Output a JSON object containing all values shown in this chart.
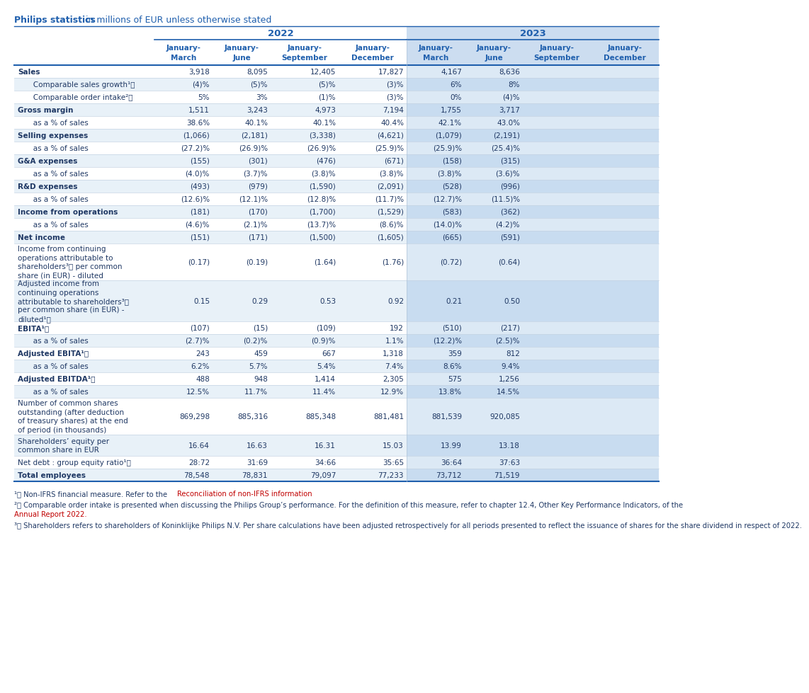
{
  "title_bold": "Philips statistics",
  "title_normal": " in millions of EUR unless otherwise stated",
  "col_headers": [
    "January-\nMarch",
    "January-\nJune",
    "January-\nSeptember",
    "January-\nDecember",
    "January-\nMarch",
    "January-\nJune",
    "January-\nSeptember",
    "January-\nDecember"
  ],
  "rows": [
    {
      "label": "Sales",
      "indent": false,
      "bold": true,
      "values": [
        "3,918",
        "8,095",
        "12,405",
        "17,827",
        "4,167",
        "8,636",
        "",
        ""
      ]
    },
    {
      "label": "   Comparable sales growth¹⧠",
      "indent": true,
      "bold": false,
      "values": [
        "(4)%",
        "(5)%",
        "(5)%",
        "(3)%",
        "6%",
        "8%",
        "",
        ""
      ]
    },
    {
      "label": "   Comparable order intake²⧠",
      "indent": true,
      "bold": false,
      "values": [
        "5%",
        "3%",
        "(1)%",
        "(3)%",
        "0%",
        "(4)%",
        "",
        ""
      ]
    },
    {
      "label": "Gross margin",
      "indent": false,
      "bold": true,
      "values": [
        "1,511",
        "3,243",
        "4,973",
        "7,194",
        "1,755",
        "3,717",
        "",
        ""
      ]
    },
    {
      "label": "   as a % of sales",
      "indent": true,
      "bold": false,
      "values": [
        "38.6%",
        "40.1%",
        "40.1%",
        "40.4%",
        "42.1%",
        "43.0%",
        "",
        ""
      ]
    },
    {
      "label": "Selling expenses",
      "indent": false,
      "bold": true,
      "values": [
        "(1,066)",
        "(2,181)",
        "(3,338)",
        "(4,621)",
        "(1,079)",
        "(2,191)",
        "",
        ""
      ]
    },
    {
      "label": "   as a % of sales",
      "indent": true,
      "bold": false,
      "values": [
        "(27.2)%",
        "(26.9)%",
        "(26.9)%",
        "(25.9)%",
        "(25.9)%",
        "(25.4)%",
        "",
        ""
      ]
    },
    {
      "label": "G&A expenses",
      "indent": false,
      "bold": true,
      "values": [
        "(155)",
        "(301)",
        "(476)",
        "(671)",
        "(158)",
        "(315)",
        "",
        ""
      ]
    },
    {
      "label": "   as a % of sales",
      "indent": true,
      "bold": false,
      "values": [
        "(4.0)%",
        "(3.7)%",
        "(3.8)%",
        "(3.8)%",
        "(3.8)%",
        "(3.6)%",
        "",
        ""
      ]
    },
    {
      "label": "R&D expenses",
      "indent": false,
      "bold": true,
      "values": [
        "(493)",
        "(979)",
        "(1,590)",
        "(2,091)",
        "(528)",
        "(996)",
        "",
        ""
      ]
    },
    {
      "label": "   as a % of sales",
      "indent": true,
      "bold": false,
      "values": [
        "(12.6)%",
        "(12.1)%",
        "(12.8)%",
        "(11.7)%",
        "(12.7)%",
        "(11.5)%",
        "",
        ""
      ]
    },
    {
      "label": "Income from operations",
      "indent": false,
      "bold": true,
      "values": [
        "(181)",
        "(170)",
        "(1,700)",
        "(1,529)",
        "(583)",
        "(362)",
        "",
        ""
      ]
    },
    {
      "label": "   as a % of sales",
      "indent": true,
      "bold": false,
      "values": [
        "(4.6)%",
        "(2.1)%",
        "(13.7)%",
        "(8.6)%",
        "(14.0)%",
        "(4.2)%",
        "",
        ""
      ]
    },
    {
      "label": "Net income",
      "indent": false,
      "bold": true,
      "values": [
        "(151)",
        "(171)",
        "(1,500)",
        "(1,605)",
        "(665)",
        "(591)",
        "",
        ""
      ]
    },
    {
      "label": "Income from continuing\noperations attributable to\nshareholders³⧠ per common\nshare (in EUR) - diluted",
      "indent": false,
      "bold": false,
      "multiline": 4,
      "values": [
        "(0.17)",
        "(0.19)",
        "(1.64)",
        "(1.76)",
        "(0.72)",
        "(0.64)",
        "",
        ""
      ]
    },
    {
      "label": "Adjusted income from\ncontinuing operations\nattributable to shareholders³⧠\nper common share (in EUR) -\ndiluted¹⧠",
      "indent": false,
      "bold": false,
      "multiline": 5,
      "values": [
        "0.15",
        "0.29",
        "0.53",
        "0.92",
        "0.21",
        "0.50",
        "",
        ""
      ]
    },
    {
      "label": "EBITA¹⧠",
      "indent": false,
      "bold": true,
      "values": [
        "(107)",
        "(15)",
        "(109)",
        "192",
        "(510)",
        "(217)",
        "",
        ""
      ]
    },
    {
      "label": "   as a % of sales",
      "indent": true,
      "bold": false,
      "values": [
        "(2.7)%",
        "(0.2)%",
        "(0.9)%",
        "1.1%",
        "(12.2)%",
        "(2.5)%",
        "",
        ""
      ]
    },
    {
      "label": "Adjusted EBITA¹⧠",
      "indent": false,
      "bold": true,
      "values": [
        "243",
        "459",
        "667",
        "1,318",
        "359",
        "812",
        "",
        ""
      ]
    },
    {
      "label": "   as a % of sales",
      "indent": true,
      "bold": false,
      "values": [
        "6.2%",
        "5.7%",
        "5.4%",
        "7.4%",
        "8.6%",
        "9.4%",
        "",
        ""
      ]
    },
    {
      "label": "Adjusted EBITDA¹⧠",
      "indent": false,
      "bold": true,
      "values": [
        "488",
        "948",
        "1,414",
        "2,305",
        "575",
        "1,256",
        "",
        ""
      ]
    },
    {
      "label": "   as a % of sales",
      "indent": true,
      "bold": false,
      "values": [
        "12.5%",
        "11.7%",
        "11.4%",
        "12.9%",
        "13.8%",
        "14.5%",
        "",
        ""
      ]
    },
    {
      "label": "Number of common shares\noutstanding (after deduction\nof treasury shares) at the end\nof period (in thousands)",
      "indent": false,
      "bold": false,
      "multiline": 4,
      "values": [
        "869,298",
        "885,316",
        "885,348",
        "881,481",
        "881,539",
        "920,085",
        "",
        ""
      ]
    },
    {
      "label": "Shareholders’ equity per\ncommon share in EUR",
      "indent": false,
      "bold": false,
      "multiline": 2,
      "values": [
        "16.64",
        "16.63",
        "16.31",
        "15.03",
        "13.99",
        "13.18",
        "",
        ""
      ]
    },
    {
      "label": "Net debt : group equity ratio¹⧠",
      "indent": false,
      "bold": false,
      "values": [
        "28:72",
        "31:69",
        "34:66",
        "35:65",
        "36:64",
        "37:63",
        "",
        ""
      ]
    },
    {
      "label": "Total employees",
      "indent": false,
      "bold": true,
      "values": [
        "78,548",
        "78,831",
        "79,097",
        "77,233",
        "73,712",
        "71,519",
        "",
        ""
      ]
    }
  ],
  "colors": {
    "header_blue": "#1F5FAD",
    "title_blue": "#1F5FAD",
    "light_blue_bg": "#CCDDF0",
    "white_bg": "#FFFFFF",
    "text_dark": "#1F3864",
    "link_color": "#C00000",
    "border_blue": "#1F5FAD",
    "row_even_bg": "#FFFFFF",
    "row_odd_bg": "#E8F1F8",
    "col2023_even": "#D8E8F5",
    "col2023_odd": "#C8DCF0"
  },
  "fn1_pre": "¹⧠ Non-IFRS financial measure. Refer to the ",
  "fn1_link": "Reconciliation of non-IFRS information",
  "fn2_pre": "²⧠ Comparable order intake is presented when discussing the Philips Group’s performance. For the definition of this measure, refer to chapter 12.4, Other Key Performance Indicators, of the ",
  "fn2_link": "Annual Report 2022.",
  "fn3": "³⧠ Shareholders refers to shareholders of Koninklijke Philips N.V. Per share calculations have been adjusted retrospectively for all periods presented to reflect the issuance of shares for the share dividend in respect of 2022."
}
